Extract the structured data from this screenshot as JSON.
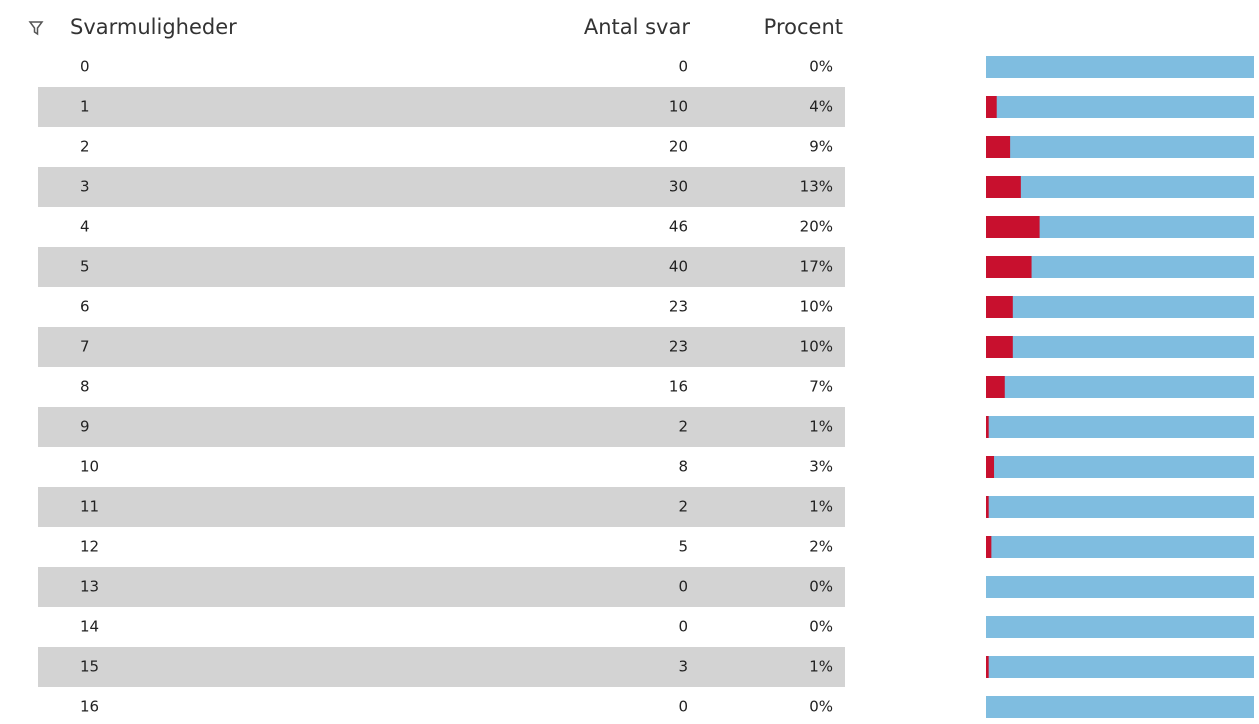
{
  "table": {
    "headers": [
      "Svarmuligheder",
      "Antal svar",
      "Procent"
    ],
    "rows": [
      {
        "option": "0",
        "count": 0,
        "percent": 0,
        "percent_label": "0%"
      },
      {
        "option": "1",
        "count": 10,
        "percent": 4,
        "percent_label": "4%"
      },
      {
        "option": "2",
        "count": 20,
        "percent": 9,
        "percent_label": "9%"
      },
      {
        "option": "3",
        "count": 30,
        "percent": 13,
        "percent_label": "13%"
      },
      {
        "option": "4",
        "count": 46,
        "percent": 20,
        "percent_label": "20%"
      },
      {
        "option": "5",
        "count": 40,
        "percent": 17,
        "percent_label": "17%"
      },
      {
        "option": "6",
        "count": 23,
        "percent": 10,
        "percent_label": "10%"
      },
      {
        "option": "7",
        "count": 23,
        "percent": 10,
        "percent_label": "10%"
      },
      {
        "option": "8",
        "count": 16,
        "percent": 7,
        "percent_label": "7%"
      },
      {
        "option": "9",
        "count": 2,
        "percent": 1,
        "percent_label": "1%"
      },
      {
        "option": "10",
        "count": 8,
        "percent": 3,
        "percent_label": "3%"
      },
      {
        "option": "11",
        "count": 2,
        "percent": 1,
        "percent_label": "1%"
      },
      {
        "option": "12",
        "count": 5,
        "percent": 2,
        "percent_label": "2%"
      },
      {
        "option": "13",
        "count": 0,
        "percent": 0,
        "percent_label": "0%"
      },
      {
        "option": "14",
        "count": 0,
        "percent": 0,
        "percent_label": "0%"
      },
      {
        "option": "15",
        "count": 3,
        "percent": 1,
        "percent_label": "1%"
      },
      {
        "option": "16",
        "count": 0,
        "percent": 0,
        "percent_label": "0%"
      }
    ],
    "bar_colors": {
      "fill": "#c8102e",
      "track": "#7fbde0"
    }
  }
}
